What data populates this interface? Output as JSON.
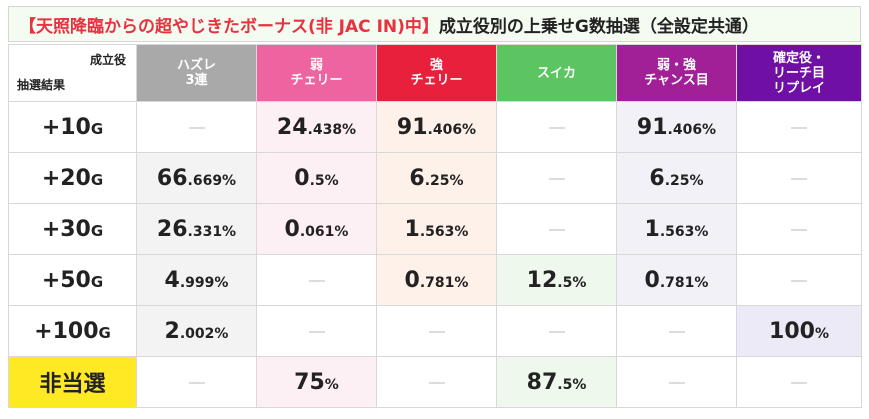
{
  "title": {
    "highlight": "【天照降臨からの超やじきたボーナス(非 JAC IN)中】",
    "rest": "成立役別の上乗せG数抽選（全設定共通）"
  },
  "colors": {
    "hazure": "#a9a9a9",
    "jaku": "#ee64a0",
    "kyo": "#e8203c",
    "suika": "#5cc460",
    "chance": "#a11f97",
    "kakutei": "#6f0fa3",
    "miss": "#ffe925"
  },
  "corner": {
    "top": "成立役",
    "bottom": "抽選結果"
  },
  "columns": [
    {
      "lines": [
        "ハズレ",
        "3連"
      ],
      "color": "#a9a9a9"
    },
    {
      "lines": [
        "弱",
        "チェリー"
      ],
      "color": "#ee64a0"
    },
    {
      "lines": [
        "強",
        "チェリー"
      ],
      "color": "#e8203c"
    },
    {
      "lines": [
        "スイカ",
        ""
      ],
      "color": "#5cc460"
    },
    {
      "lines": [
        "弱・強",
        "チャンス目"
      ],
      "color": "#a11f97"
    },
    {
      "lines": [
        "確定役・",
        "リーチ目",
        "リプレイ"
      ],
      "color": "#6f0fa3"
    }
  ],
  "rows": [
    {
      "label": "+10",
      "unit": "G",
      "cells": [
        null,
        {
          "int": "24",
          "dec": ".438%"
        },
        {
          "int": "91",
          "dec": ".406%"
        },
        null,
        {
          "int": "91",
          "dec": ".406%"
        },
        null
      ]
    },
    {
      "label": "+20",
      "unit": "G",
      "cells": [
        {
          "int": "66",
          "dec": ".669%"
        },
        {
          "int": "0",
          "dec": ".5%"
        },
        {
          "int": "6",
          "dec": ".25%"
        },
        null,
        {
          "int": "6",
          "dec": ".25%"
        },
        null
      ]
    },
    {
      "label": "+30",
      "unit": "G",
      "cells": [
        {
          "int": "26",
          "dec": ".331%"
        },
        {
          "int": "0",
          "dec": ".061%"
        },
        {
          "int": "1",
          "dec": ".563%"
        },
        null,
        {
          "int": "1",
          "dec": ".563%"
        },
        null
      ]
    },
    {
      "label": "+50",
      "unit": "G",
      "cells": [
        {
          "int": "4",
          "dec": ".999%"
        },
        null,
        {
          "int": "0",
          "dec": ".781%"
        },
        {
          "int": "12",
          "dec": ".5%"
        },
        {
          "int": "0",
          "dec": ".781%"
        },
        null
      ]
    },
    {
      "label": "+100",
      "unit": "G",
      "cells": [
        {
          "int": "2",
          "dec": ".002%"
        },
        null,
        null,
        null,
        null,
        {
          "int": "100",
          "dec": "%"
        }
      ]
    },
    {
      "label": "非当選",
      "unit": "",
      "miss": true,
      "cells": [
        null,
        {
          "int": "75",
          "dec": "%"
        },
        null,
        {
          "int": "87",
          "dec": ".5%"
        },
        null,
        null
      ]
    }
  ]
}
